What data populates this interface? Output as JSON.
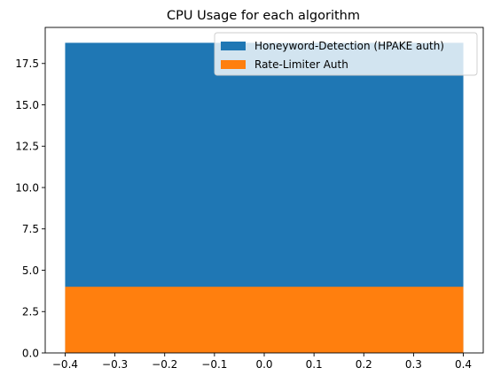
{
  "chart_data": {
    "type": "bar",
    "title": "CPU Usage for each algorithm",
    "xlabel": "",
    "ylabel": "",
    "x": [
      0
    ],
    "bar_width": 0.8,
    "xlim": [
      -0.44,
      0.44
    ],
    "ylim": [
      0,
      19.68
    ],
    "xticks": [
      -0.4,
      -0.3,
      -0.2,
      -0.1,
      0.0,
      0.1,
      0.2,
      0.3,
      0.4
    ],
    "xtick_labels": [
      "−0.4",
      "−0.3",
      "−0.2",
      "−0.1",
      "0.0",
      "0.1",
      "0.2",
      "0.3",
      "0.4"
    ],
    "yticks": [
      0.0,
      2.5,
      5.0,
      7.5,
      10.0,
      12.5,
      15.0,
      17.5
    ],
    "ytick_labels": [
      "0.0",
      "2.5",
      "5.0",
      "7.5",
      "10.0",
      "12.5",
      "15.0",
      "17.5"
    ],
    "grid": false,
    "legend_position": "top-right",
    "series": [
      {
        "name": "Honeyword-Detection (HPAKE auth)",
        "values": [
          18.75
        ],
        "color": "#1f77b4"
      },
      {
        "name": "Rate-Limiter Auth",
        "values": [
          4.0
        ],
        "color": "#ff7f0e"
      }
    ]
  }
}
